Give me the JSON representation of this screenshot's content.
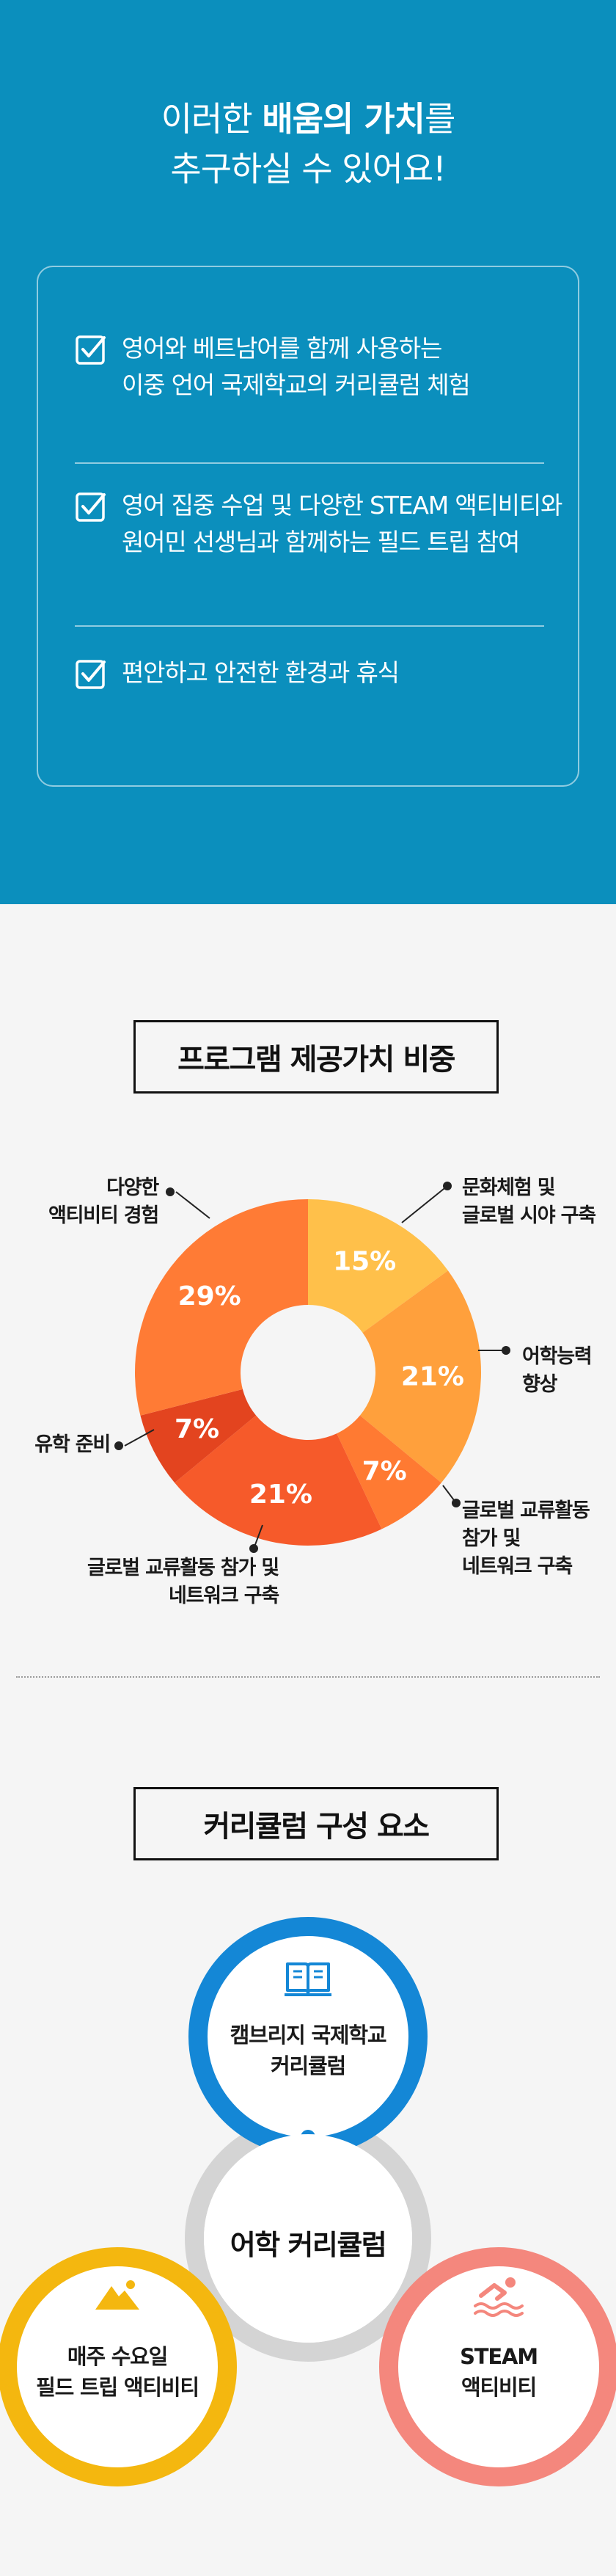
{
  "values": {
    "title_pre": "이러한 ",
    "title_bold1": "배움의 가치",
    "title_mid": "를",
    "title_line2": "추구하실 수 있어요!",
    "items": [
      {
        "line1": "영어와 베트남어를 함께 사용하는",
        "line2": "이중 언어 국제학교의 커리큘럼 체험"
      },
      {
        "line1": "영어 집중 수업 및 다양한 STEAM 액티비티와",
        "line2": "원어민 선생님과 함께하는 필드 트립 참여"
      },
      {
        "line1": "편안하고 안전한 환경과 휴식",
        "line2": ""
      }
    ],
    "check_icon": "check-box-icon"
  },
  "chart_section": {
    "title": "프로그램 제공가치 비중"
  },
  "chart_data": {
    "type": "pie",
    "title": "프로그램 제공가치 비중",
    "donut": true,
    "start": "top, clockwise",
    "slices": [
      {
        "label": "문화체험 및 글로벌 시야 구축",
        "value": 15,
        "display": "15%",
        "color": "#ffc04a"
      },
      {
        "label": "어학능력 향상",
        "value": 21,
        "display": "21%",
        "color": "#ffa03c"
      },
      {
        "label": "글로벌 교류활동 참가 및 네트워크 구축",
        "value": 7,
        "display": "7%",
        "color": "#ff7a32"
      },
      {
        "label": "글로벌 교류활동 참가 및 네트워크 구축",
        "value": 21,
        "display": "21%",
        "color": "#f65a2a"
      },
      {
        "label": "유학 준비",
        "value": 7,
        "display": "7%",
        "color": "#e3441f"
      },
      {
        "label": "다양한 액티비티 경험",
        "value": 29,
        "display": "29%",
        "color": "#ff7b35"
      }
    ],
    "callouts": [
      {
        "line1": "문화체험 및",
        "line2": "글로벌 시야 구축",
        "line3": ""
      },
      {
        "line1": "어학능력",
        "line2": "향상",
        "line3": ""
      },
      {
        "line1": "글로벌 교류활동",
        "line2": "참가 및",
        "line3": "네트워크 구축"
      },
      {
        "line1": "글로벌 교류활동 참가 및",
        "line2": "네트워크 구축",
        "line3": ""
      },
      {
        "line1": "유학 준비",
        "line2": "",
        "line3": ""
      },
      {
        "line1": "다양한",
        "line2": "액티비티 경험",
        "line3": ""
      }
    ]
  },
  "curriculum": {
    "title": "커리큘럼 구성 요소",
    "center": "어학 커리큘럼",
    "top": {
      "line1": "캠브리지 국제학교",
      "line2": "커리큘럼",
      "icon": "book-icon",
      "color": "#1487d6"
    },
    "left": {
      "line1": "매주 수요일",
      "line2": "필드 트립 액티비티",
      "icon": "mountain-icon",
      "color": "#f4b70f"
    },
    "right": {
      "line1": "STEAM",
      "line2": "액티비티",
      "icon": "swimmer-icon",
      "color": "#f4877d"
    }
  }
}
